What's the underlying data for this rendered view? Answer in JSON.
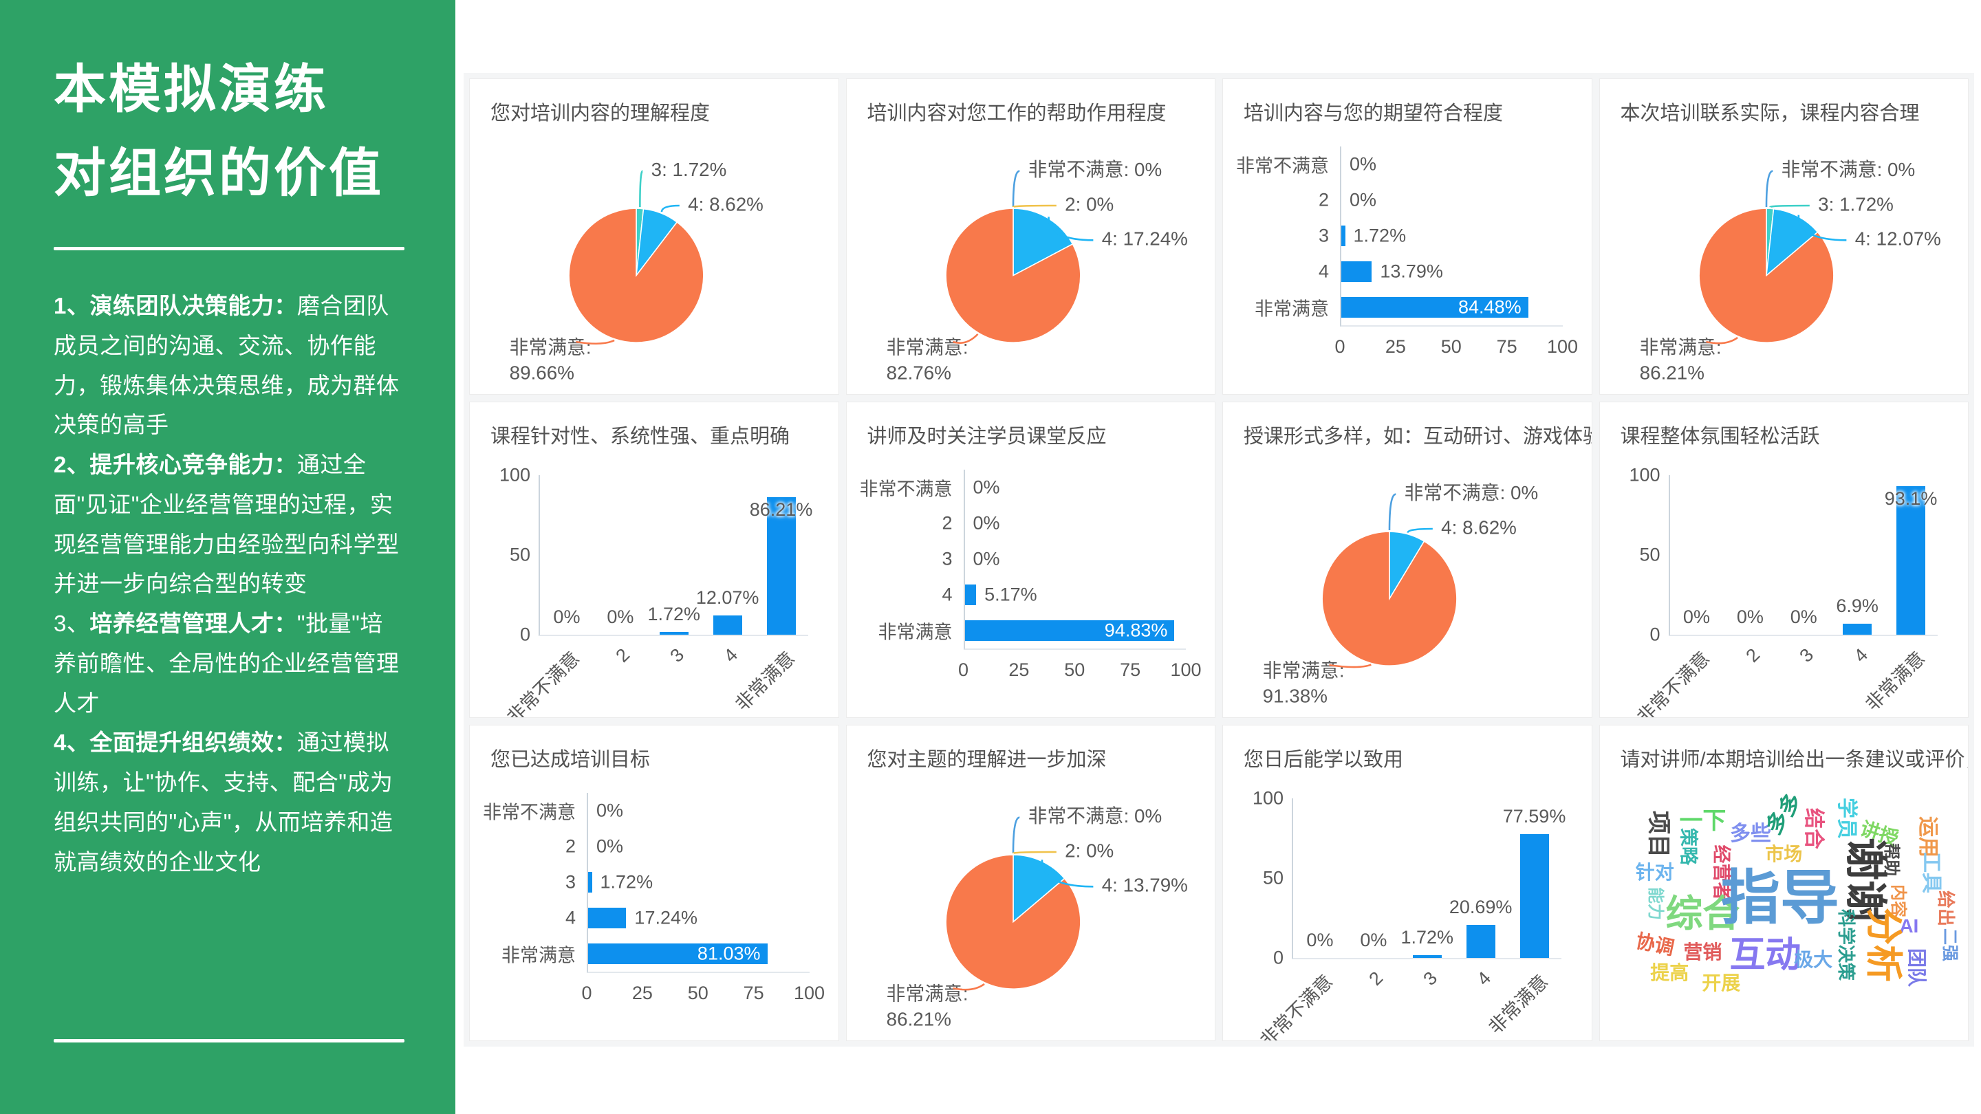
{
  "colors": {
    "sidebar_green": "#2EA266",
    "bar_blue": "#0d90ee",
    "pie_orange": "#f8794b",
    "pie_light_blue": "#1fb5f5",
    "pie_teal": "#3ed0c8",
    "leader_blue": "#4da0e0",
    "leader_yellow": "#f0c24a",
    "panel_bg": "#f4f5f6",
    "text_gray": "#595959"
  },
  "sidebar": {
    "title_lines": [
      "本模拟演练",
      "对组织的价值"
    ],
    "points": [
      {
        "num": "1、",
        "title": "演练团队决策能力：",
        "text": "磨合团队成员之间的沟通、交流、协作能力，锻炼集体决策思维，成为群体决策的高手",
        "num_bold": true
      },
      {
        "num": "2、",
        "title": "提升核心竞争能力：",
        "text": "通过全面\"见证\"企业经营管理的过程，实现经营管理能力由经验型向科学型并进一步向综合型的转变",
        "num_bold": true
      },
      {
        "num": "3、",
        "title": "培养经营管理人才：",
        "text": "\"批量\"培养前瞻性、全局性的企业经营管理人才",
        "num_bold": false
      },
      {
        "num": "4、",
        "title": "全面提升组织绩效：",
        "text": "通过模拟训练，让\"协作、支持、配合\"成为组织共同的\"心声\"，从而培养和造就高绩效的企业文化",
        "num_bold": true
      }
    ]
  },
  "chart_data": [
    {
      "type": "pie",
      "title": "您对培训内容的理解程度",
      "categories": [
        "3",
        "4",
        "非常满意"
      ],
      "values": [
        1.72,
        8.62,
        89.66
      ],
      "slice_colors": [
        "#3ed0c8",
        "#1fb5f5",
        "#f8794b"
      ],
      "labels": [
        {
          "text": "3: 1.72%",
          "slice": 0,
          "side": "right",
          "line_color": "#3ed0c8"
        },
        {
          "text": "4: 8.62%",
          "slice": 1,
          "side": "right",
          "line_color": "#1fb5f5"
        },
        {
          "text": "非常满意: 89.66%",
          "slice": 2,
          "side": "bottom",
          "line_color": "#f8794b"
        }
      ]
    },
    {
      "type": "pie",
      "title": "培训内容对您工作的帮助作用程度",
      "categories": [
        "非常不满意",
        "2",
        "4",
        "非常满意"
      ],
      "values": [
        0,
        0,
        17.24,
        82.76
      ],
      "slice_colors": [
        "#4da0e0",
        "#f0c24a",
        "#1fb5f5",
        "#f8794b"
      ],
      "labels": [
        {
          "text": "非常不满意: 0%",
          "slice": 0,
          "side": "right",
          "line_color": "#4da0e0"
        },
        {
          "text": "2: 0%",
          "slice": 1,
          "side": "right",
          "line_color": "#f0c24a"
        },
        {
          "text": "4: 17.24%",
          "slice": 2,
          "side": "right",
          "line_color": "#1fb5f5"
        },
        {
          "text": "非常满意: 82.76%",
          "slice": 3,
          "side": "bottom",
          "line_color": "#f8794b"
        }
      ]
    },
    {
      "type": "bar",
      "orientation": "horizontal",
      "title": "培训内容与您的期望符合程度",
      "categories": [
        "非常不满意",
        "2",
        "3",
        "4",
        "非常满意"
      ],
      "values": [
        0,
        0,
        1.72,
        13.79,
        84.48
      ],
      "value_labels": [
        "0%",
        "0%",
        "1.72%",
        "13.79%",
        "84.48%"
      ],
      "xticks": [
        "0",
        "25",
        "50",
        "75",
        "100"
      ],
      "xlim": [
        0,
        100
      ]
    },
    {
      "type": "pie",
      "title": "本次培训联系实际，课程内容合理",
      "categories": [
        "非常不满意",
        "3",
        "4",
        "非常满意"
      ],
      "values": [
        0,
        1.72,
        12.07,
        86.21
      ],
      "slice_colors": [
        "#4da0e0",
        "#3ed0c8",
        "#1fb5f5",
        "#f8794b"
      ],
      "labels": [
        {
          "text": "非常不满意: 0%",
          "slice": 0,
          "side": "right",
          "line_color": "#4da0e0"
        },
        {
          "text": "3: 1.72%",
          "slice": 1,
          "side": "right",
          "line_color": "#3ed0c8"
        },
        {
          "text": "4: 12.07%",
          "slice": 2,
          "side": "right",
          "line_color": "#1fb5f5"
        },
        {
          "text": "非常满意: 86.21%",
          "slice": 3,
          "side": "bottom",
          "line_color": "#f8794b"
        }
      ]
    },
    {
      "type": "bar",
      "orientation": "vertical",
      "title": "课程针对性、系统性强、重点明确",
      "categories": [
        "非常不满意",
        "2",
        "3",
        "4",
        "非常满意"
      ],
      "values": [
        0,
        0,
        1.72,
        12.07,
        86.21
      ],
      "value_labels": [
        "0%",
        "0%",
        "1.72%",
        "12.07%",
        "86.21%"
      ],
      "yticks": [
        "100",
        "50",
        "0"
      ],
      "ylim": [
        0,
        100
      ]
    },
    {
      "type": "bar",
      "orientation": "horizontal",
      "title": "讲师及时关注学员课堂反应",
      "categories": [
        "非常不满意",
        "2",
        "3",
        "4",
        "非常满意"
      ],
      "values": [
        0,
        0,
        0,
        5.17,
        94.83
      ],
      "value_labels": [
        "0%",
        "0%",
        "0%",
        "5.17%",
        "94.83%"
      ],
      "xticks": [
        "0",
        "25",
        "50",
        "75",
        "100"
      ],
      "xlim": [
        0,
        100
      ]
    },
    {
      "type": "pie",
      "title": "授课形式多样，如：互动研讨、游戏体验、角色扮演",
      "categories": [
        "非常不满意",
        "4",
        "非常满意"
      ],
      "values": [
        0,
        8.62,
        91.38
      ],
      "slice_colors": [
        "#4da0e0",
        "#1fb5f5",
        "#f8794b"
      ],
      "labels": [
        {
          "text": "非常不满意: 0%",
          "slice": 0,
          "side": "right",
          "line_color": "#4da0e0"
        },
        {
          "text": "4: 8.62%",
          "slice": 1,
          "side": "right",
          "line_color": "#1fb5f5"
        },
        {
          "text": "非常满意: 91.38%",
          "slice": 2,
          "side": "bottom",
          "line_color": "#f8794b"
        }
      ]
    },
    {
      "type": "bar",
      "orientation": "vertical",
      "title": "课程整体氛围轻松活跃",
      "categories": [
        "非常不满意",
        "2",
        "3",
        "4",
        "非常满意"
      ],
      "values": [
        0,
        0,
        0,
        6.9,
        93.1
      ],
      "value_labels": [
        "0%",
        "0%",
        "0%",
        "6.9%",
        "93.1%"
      ],
      "yticks": [
        "100",
        "50",
        "0"
      ],
      "ylim": [
        0,
        100
      ]
    },
    {
      "type": "bar",
      "orientation": "horizontal",
      "title": "您已达成培训目标",
      "categories": [
        "非常不满意",
        "2",
        "3",
        "4",
        "非常满意"
      ],
      "values": [
        0,
        0,
        1.72,
        17.24,
        81.03
      ],
      "value_labels": [
        "0%",
        "0%",
        "1.72%",
        "17.24%",
        "81.03%"
      ],
      "xticks": [
        "0",
        "25",
        "50",
        "75",
        "100"
      ],
      "xlim": [
        0,
        100
      ]
    },
    {
      "type": "pie",
      "title": "您对主题的理解进一步加深",
      "categories": [
        "非常不满意",
        "2",
        "4",
        "非常满意"
      ],
      "values": [
        0,
        0,
        13.79,
        86.21
      ],
      "slice_colors": [
        "#4da0e0",
        "#f0c24a",
        "#1fb5f5",
        "#f8794b"
      ],
      "labels": [
        {
          "text": "非常不满意: 0%",
          "slice": 0,
          "side": "right",
          "line_color": "#4da0e0"
        },
        {
          "text": "2: 0%",
          "slice": 1,
          "side": "right",
          "line_color": "#f0c24a"
        },
        {
          "text": "4: 13.79%",
          "slice": 2,
          "side": "right",
          "line_color": "#1fb5f5"
        },
        {
          "text": "非常满意: 86.21%",
          "slice": 3,
          "side": "bottom",
          "line_color": "#f8794b"
        }
      ]
    },
    {
      "type": "bar",
      "orientation": "vertical",
      "title": "您日后能学以致用",
      "categories": [
        "非常不满意",
        "2",
        "3",
        "4",
        "非常满意"
      ],
      "values": [
        0,
        0,
        1.72,
        20.69,
        77.59
      ],
      "value_labels": [
        "0%",
        "0%",
        "1.72%",
        "20.69%",
        "77.59%"
      ],
      "yticks": [
        "100",
        "50",
        "0"
      ],
      "ylim": [
        0,
        100
      ]
    },
    {
      "type": "wordcloud",
      "title": "请对讲师/本期培训给出一条建议或评价，谢谢",
      "words": [
        {
          "t": "项目",
          "x": 16,
          "y": 24,
          "s": 34,
          "c": "#4a4a4a",
          "r": 90
        },
        {
          "t": "一下",
          "x": 28,
          "y": 19,
          "s": 34,
          "c": "#5fd86a",
          "r": 0
        },
        {
          "t": "策略",
          "x": 24,
          "y": 29,
          "s": 27,
          "c": "#35b8ae",
          "r": 90
        },
        {
          "t": "多些",
          "x": 41,
          "y": 24,
          "s": 30,
          "c": "#7f8fef",
          "r": 0
        },
        {
          "t": "多多",
          "x": 50,
          "y": 16,
          "s": 32,
          "c": "#1f9e78",
          "r": -55
        },
        {
          "t": "结合",
          "x": 58,
          "y": 22,
          "s": 30,
          "c": "#e8537f",
          "r": 90
        },
        {
          "t": "学员",
          "x": 67,
          "y": 18,
          "s": 30,
          "c": "#45cfe0",
          "r": 90
        },
        {
          "t": "讲授",
          "x": 76,
          "y": 24,
          "s": 28,
          "c": "#7fd863",
          "r": 18
        },
        {
          "t": "运用",
          "x": 89,
          "y": 25,
          "s": 30,
          "c": "#f0984a",
          "r": 90
        },
        {
          "t": "市场",
          "x": 50,
          "y": 32,
          "s": 27,
          "c": "#ecc44a",
          "r": 0
        },
        {
          "t": "针对",
          "x": 15,
          "y": 39,
          "s": 28,
          "c": "#6cb4ee",
          "r": 0
        },
        {
          "t": "经营者",
          "x": 33,
          "y": 39,
          "s": 27,
          "c": "#e04a6a",
          "r": 90
        },
        {
          "t": "帮助",
          "x": 79,
          "y": 34,
          "s": 24,
          "c": "#4a4a4a",
          "r": 90
        },
        {
          "t": "工具",
          "x": 90,
          "y": 39,
          "s": 30,
          "c": "#85c8f0",
          "r": 90
        },
        {
          "t": "谢谢",
          "x": 72,
          "y": 42,
          "s": 62,
          "c": "#3d3d3d",
          "r": 90
        },
        {
          "t": "能力",
          "x": 15,
          "y": 51,
          "s": 24,
          "c": "#7fd8cf",
          "r": 90
        },
        {
          "t": "综合",
          "x": 28,
          "y": 55,
          "s": 54,
          "c": "#7fd87f",
          "r": 0
        },
        {
          "t": "指导",
          "x": 49,
          "y": 49,
          "s": 86,
          "c": "#5b9bd5",
          "r": 0
        },
        {
          "t": "内容",
          "x": 81,
          "y": 50,
          "s": 24,
          "c": "#f0944a",
          "r": 90
        },
        {
          "t": "给出",
          "x": 94,
          "y": 53,
          "s": 26,
          "c": "#e8795a",
          "r": 90
        },
        {
          "t": "AI",
          "x": 84,
          "y": 60,
          "s": 28,
          "c": "#8678f0",
          "r": 0
        },
        {
          "t": "科学决策",
          "x": 67,
          "y": 67,
          "s": 26,
          "c": "#2a9d8f",
          "r": 90
        },
        {
          "t": "分析",
          "x": 77,
          "y": 67,
          "s": 54,
          "c": "#f59a23",
          "r": 90
        },
        {
          "t": "团队",
          "x": 86,
          "y": 76,
          "s": 28,
          "c": "#7a7ae8",
          "r": 90
        },
        {
          "t": "二强",
          "x": 95,
          "y": 67,
          "s": 24,
          "c": "#6a9ae0",
          "r": 90
        },
        {
          "t": "协调",
          "x": 15,
          "y": 67,
          "s": 28,
          "c": "#e8684a",
          "r": 12
        },
        {
          "t": "营销",
          "x": 28,
          "y": 70,
          "s": 28,
          "c": "#e05a5a",
          "r": 0
        },
        {
          "t": "互动",
          "x": 45,
          "y": 71,
          "s": 52,
          "c": "#8678f0",
          "r": 0
        },
        {
          "t": "极大",
          "x": 58,
          "y": 73,
          "s": 28,
          "c": "#6aa8e8",
          "r": 0
        },
        {
          "t": "提高",
          "x": 19,
          "y": 78,
          "s": 28,
          "c": "#ecd24a",
          "r": 0
        },
        {
          "t": "开展",
          "x": 33,
          "y": 82,
          "s": 28,
          "c": "#ecd24a",
          "r": 0
        }
      ]
    }
  ]
}
